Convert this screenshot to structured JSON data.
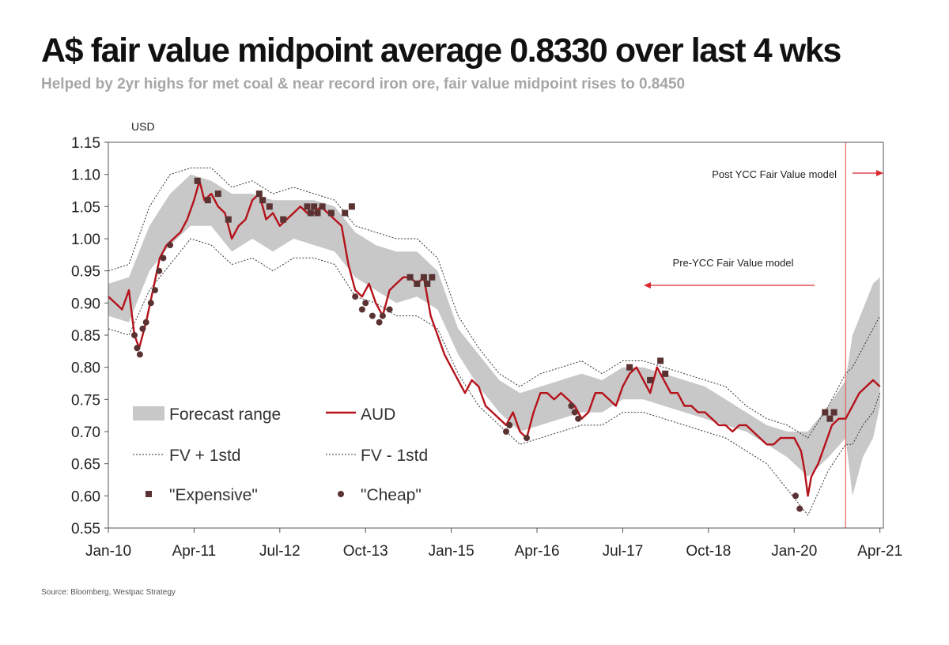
{
  "title": "A$ fair value midpoint average 0.8330 over last 4 wks",
  "subtitle": "Helped by 2yr highs for met coal & near record iron ore, fair value midpoint rises to 0.8450",
  "source": "Source: Bloomberg, Westpac Strategy",
  "colors": {
    "aud": "#b5121b",
    "forecast_range": "#c8c8c8",
    "fv_bands": "#333333",
    "markers": "#5a3232",
    "annotation_arrow": "#d9282f",
    "ycc_line": "#e06060"
  },
  "chart_data": {
    "type": "line",
    "ylabel": "USD",
    "ylim": [
      0.55,
      1.15
    ],
    "yticks": [
      "1.15",
      "1.10",
      "1.05",
      "1.00",
      "0.95",
      "0.90",
      "0.85",
      "0.80",
      "0.75",
      "0.70",
      "0.65",
      "0.60",
      "0.55"
    ],
    "xlim": [
      2010.0,
      2021.3
    ],
    "xticks": [
      {
        "label": "Jan-10",
        "x": 2010.0
      },
      {
        "label": "Apr-11",
        "x": 2011.25
      },
      {
        "label": "Jul-12",
        "x": 2012.5
      },
      {
        "label": "Oct-13",
        "x": 2013.75
      },
      {
        "label": "Jan-15",
        "x": 2015.0
      },
      {
        "label": "Apr-16",
        "x": 2016.25
      },
      {
        "label": "Jul-17",
        "x": 2017.5
      },
      {
        "label": "Oct-18",
        "x": 2018.75
      },
      {
        "label": "Jan-20",
        "x": 2020.0
      },
      {
        "label": "Apr-21",
        "x": 2021.25
      }
    ],
    "grid": false,
    "legend_position": "bottom-left",
    "legend": {
      "forecast_range": "Forecast range",
      "aud": "AUD",
      "fv_plus": "FV + 1std",
      "fv_minus": "FV - 1std",
      "expensive": "\"Expensive\"",
      "cheap": "\"Cheap\""
    },
    "annotations": {
      "post_ycc": "Post YCC Fair Value model",
      "pre_ycc": "Pre-YCC Fair Value model",
      "ycc_start_x": 2020.75
    },
    "series": [
      {
        "name": "AUD",
        "x": [
          2010.0,
          2010.1,
          2010.2,
          2010.3,
          2010.38,
          2010.45,
          2010.55,
          2010.65,
          2010.75,
          2010.85,
          2010.95,
          2011.05,
          2011.15,
          2011.25,
          2011.33,
          2011.4,
          2011.5,
          2011.6,
          2011.7,
          2011.8,
          2011.9,
          2012.0,
          2012.1,
          2012.2,
          2012.3,
          2012.4,
          2012.5,
          2012.6,
          2012.7,
          2012.8,
          2012.9,
          2013.0,
          2013.1,
          2013.2,
          2013.3,
          2013.4,
          2013.5,
          2013.6,
          2013.7,
          2013.8,
          2013.9,
          2014.0,
          2014.1,
          2014.2,
          2014.3,
          2014.4,
          2014.5,
          2014.6,
          2014.7,
          2014.8,
          2014.9,
          2015.0,
          2015.1,
          2015.2,
          2015.3,
          2015.4,
          2015.5,
          2015.6,
          2015.7,
          2015.8,
          2015.9,
          2016.0,
          2016.1,
          2016.2,
          2016.3,
          2016.4,
          2016.5,
          2016.6,
          2016.7,
          2016.8,
          2016.9,
          2017.0,
          2017.1,
          2017.2,
          2017.3,
          2017.4,
          2017.5,
          2017.6,
          2017.7,
          2017.8,
          2017.9,
          2018.0,
          2018.1,
          2018.2,
          2018.3,
          2018.4,
          2018.5,
          2018.6,
          2018.7,
          2018.8,
          2018.9,
          2019.0,
          2019.1,
          2019.2,
          2019.3,
          2019.4,
          2019.5,
          2019.6,
          2019.7,
          2019.8,
          2019.9,
          2020.0,
          2020.1,
          2020.15,
          2020.2,
          2020.25,
          2020.35,
          2020.45,
          2020.55,
          2020.65,
          2020.75,
          2020.85,
          2020.95,
          2021.05,
          2021.15,
          2021.25
        ],
        "y": [
          0.91,
          0.9,
          0.89,
          0.92,
          0.85,
          0.83,
          0.87,
          0.92,
          0.97,
          0.99,
          1.0,
          1.01,
          1.03,
          1.06,
          1.09,
          1.06,
          1.07,
          1.05,
          1.04,
          1.0,
          1.02,
          1.03,
          1.06,
          1.07,
          1.03,
          1.04,
          1.02,
          1.03,
          1.04,
          1.05,
          1.04,
          1.04,
          1.05,
          1.04,
          1.03,
          1.02,
          0.96,
          0.92,
          0.91,
          0.93,
          0.9,
          0.88,
          0.92,
          0.93,
          0.94,
          0.94,
          0.93,
          0.94,
          0.88,
          0.85,
          0.82,
          0.8,
          0.78,
          0.76,
          0.78,
          0.77,
          0.74,
          0.73,
          0.72,
          0.71,
          0.73,
          0.7,
          0.69,
          0.73,
          0.76,
          0.76,
          0.75,
          0.76,
          0.75,
          0.74,
          0.72,
          0.73,
          0.76,
          0.76,
          0.75,
          0.74,
          0.77,
          0.79,
          0.8,
          0.78,
          0.76,
          0.8,
          0.78,
          0.76,
          0.76,
          0.74,
          0.74,
          0.73,
          0.73,
          0.72,
          0.71,
          0.71,
          0.7,
          0.71,
          0.71,
          0.7,
          0.69,
          0.68,
          0.68,
          0.69,
          0.69,
          0.69,
          0.67,
          0.64,
          0.6,
          0.63,
          0.65,
          0.68,
          0.71,
          0.72,
          0.72,
          0.74,
          0.76,
          0.77,
          0.78,
          0.77
        ]
      },
      {
        "name": "Forecast range",
        "x": [
          2010.0,
          2010.3,
          2010.6,
          2010.9,
          2011.2,
          2011.5,
          2011.8,
          2012.1,
          2012.4,
          2012.7,
          2013.0,
          2013.3,
          2013.6,
          2013.9,
          2014.2,
          2014.5,
          2014.8,
          2015.1,
          2015.4,
          2015.7,
          2016.0,
          2016.3,
          2016.6,
          2016.9,
          2017.2,
          2017.5,
          2017.8,
          2018.1,
          2018.4,
          2018.7,
          2019.0,
          2019.3,
          2019.6,
          2019.9,
          2020.2,
          2020.5,
          2020.75,
          2020.85,
          2021.0,
          2021.15,
          2021.25
        ],
        "low": [
          0.88,
          0.87,
          0.95,
          0.99,
          1.02,
          1.02,
          0.98,
          1.0,
          0.98,
          1.0,
          0.99,
          0.98,
          0.94,
          0.92,
          0.9,
          0.91,
          0.89,
          0.82,
          0.77,
          0.73,
          0.7,
          0.71,
          0.72,
          0.73,
          0.73,
          0.75,
          0.75,
          0.74,
          0.73,
          0.72,
          0.71,
          0.7,
          0.68,
          0.66,
          0.63,
          0.66,
          0.69,
          0.6,
          0.66,
          0.69,
          0.74
        ],
        "high": [
          0.93,
          0.94,
          1.02,
          1.07,
          1.1,
          1.09,
          1.07,
          1.07,
          1.06,
          1.06,
          1.06,
          1.05,
          1.01,
          0.99,
          0.98,
          0.98,
          0.95,
          0.86,
          0.82,
          0.78,
          0.76,
          0.77,
          0.78,
          0.79,
          0.78,
          0.8,
          0.8,
          0.79,
          0.78,
          0.77,
          0.75,
          0.73,
          0.71,
          0.7,
          0.7,
          0.74,
          0.78,
          0.85,
          0.89,
          0.93,
          0.94
        ]
      },
      {
        "name": "FV + 1std",
        "x": [
          2010.0,
          2010.3,
          2010.6,
          2010.9,
          2011.2,
          2011.5,
          2011.8,
          2012.1,
          2012.4,
          2012.7,
          2013.0,
          2013.3,
          2013.6,
          2013.9,
          2014.2,
          2014.5,
          2014.8,
          2015.1,
          2015.4,
          2015.7,
          2016.0,
          2016.3,
          2016.6,
          2016.9,
          2017.2,
          2017.5,
          2017.8,
          2018.1,
          2018.4,
          2018.7,
          2019.0,
          2019.3,
          2019.6,
          2019.9,
          2020.2,
          2020.5,
          2020.75,
          2020.85,
          2021.0,
          2021.15,
          2021.25
        ],
        "y": [
          0.95,
          0.96,
          1.05,
          1.1,
          1.11,
          1.11,
          1.08,
          1.09,
          1.07,
          1.08,
          1.07,
          1.06,
          1.02,
          1.01,
          1.0,
          1.0,
          0.97,
          0.88,
          0.83,
          0.79,
          0.77,
          0.79,
          0.8,
          0.81,
          0.79,
          0.81,
          0.81,
          0.8,
          0.79,
          0.78,
          0.77,
          0.74,
          0.72,
          0.71,
          0.69,
          0.74,
          0.79,
          0.8,
          0.83,
          0.86,
          0.88
        ]
      },
      {
        "name": "FV - 1std",
        "x": [
          2010.0,
          2010.3,
          2010.6,
          2010.9,
          2011.2,
          2011.5,
          2011.8,
          2012.1,
          2012.4,
          2012.7,
          2013.0,
          2013.3,
          2013.6,
          2013.9,
          2014.2,
          2014.5,
          2014.8,
          2015.1,
          2015.4,
          2015.7,
          2016.0,
          2016.3,
          2016.6,
          2016.9,
          2017.2,
          2017.5,
          2017.8,
          2018.1,
          2018.4,
          2018.7,
          2019.0,
          2019.3,
          2019.6,
          2019.9,
          2020.2,
          2020.5,
          2020.75,
          2020.85,
          2021.0,
          2021.15,
          2021.25
        ],
        "y": [
          0.86,
          0.85,
          0.92,
          0.96,
          1.0,
          0.99,
          0.96,
          0.97,
          0.95,
          0.97,
          0.97,
          0.96,
          0.91,
          0.9,
          0.88,
          0.88,
          0.86,
          0.79,
          0.74,
          0.71,
          0.68,
          0.69,
          0.7,
          0.71,
          0.71,
          0.73,
          0.73,
          0.72,
          0.71,
          0.7,
          0.69,
          0.67,
          0.65,
          0.61,
          0.57,
          0.64,
          0.68,
          0.68,
          0.71,
          0.73,
          0.76
        ]
      },
      {
        "name": "\"Expensive\"",
        "x": [
          2011.3,
          2011.45,
          2011.6,
          2011.75,
          2012.2,
          2012.25,
          2012.35,
          2012.55,
          2012.9,
          2012.95,
          2013.0,
          2013.05,
          2013.12,
          2013.25,
          2013.45,
          2013.55,
          2014.4,
          2014.5,
          2014.6,
          2014.65,
          2014.72,
          2017.6,
          2017.9,
          2018.05,
          2018.12,
          2020.45,
          2020.52,
          2020.58
        ],
        "y": [
          1.09,
          1.06,
          1.07,
          1.03,
          1.07,
          1.06,
          1.05,
          1.03,
          1.05,
          1.04,
          1.05,
          1.04,
          1.05,
          1.04,
          1.04,
          1.05,
          0.94,
          0.93,
          0.94,
          0.93,
          0.94,
          0.8,
          0.78,
          0.81,
          0.79,
          0.73,
          0.72,
          0.73
        ]
      },
      {
        "name": "\"Cheap\"",
        "x": [
          2010.38,
          2010.42,
          2010.46,
          2010.5,
          2010.55,
          2010.62,
          2010.68,
          2010.74,
          2010.8,
          2010.9,
          2013.6,
          2013.7,
          2013.75,
          2013.85,
          2013.95,
          2014.0,
          2014.1,
          2015.8,
          2015.85,
          2016.1,
          2016.75,
          2016.8,
          2016.85,
          2020.02,
          2020.08
        ],
        "y": [
          0.85,
          0.83,
          0.82,
          0.86,
          0.87,
          0.9,
          0.92,
          0.95,
          0.97,
          0.99,
          0.91,
          0.89,
          0.9,
          0.88,
          0.87,
          0.88,
          0.89,
          0.7,
          0.71,
          0.69,
          0.74,
          0.73,
          0.72,
          0.6,
          0.58
        ]
      }
    ]
  }
}
